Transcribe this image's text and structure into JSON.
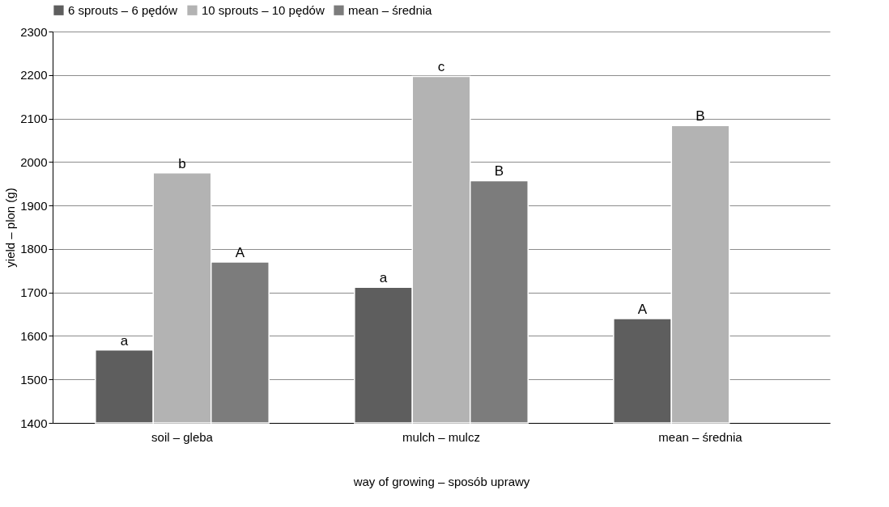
{
  "chart_data": {
    "type": "bar",
    "xlabel": "way of  growing  – sposób uprawy",
    "ylabel": "yield – plon  (g)",
    "categories": [
      "soil – gleba",
      "mulch – mulcz",
      "mean – średnia"
    ],
    "series": [
      {
        "name": "6 sprouts – 6 pędów",
        "color": "#5e5e5e",
        "values": [
          1568,
          1712,
          1640
        ]
      },
      {
        "name": "10 sprouts – 10 pędów",
        "color": "#b3b3b3",
        "values": [
          1975,
          2197,
          2084
        ]
      },
      {
        "name": "mean – średnia",
        "color": "#7c7c7c",
        "values": [
          1770,
          1957,
          null
        ]
      }
    ],
    "ylim": [
      1400,
      2300
    ],
    "yticks": [
      1400,
      1500,
      1600,
      1700,
      1800,
      1900,
      2000,
      2100,
      2200,
      2300
    ],
    "grid": "y",
    "legend": "top",
    "annotations": [
      "a",
      "b",
      "A",
      "a",
      "c",
      "B",
      "A",
      "B"
    ]
  }
}
